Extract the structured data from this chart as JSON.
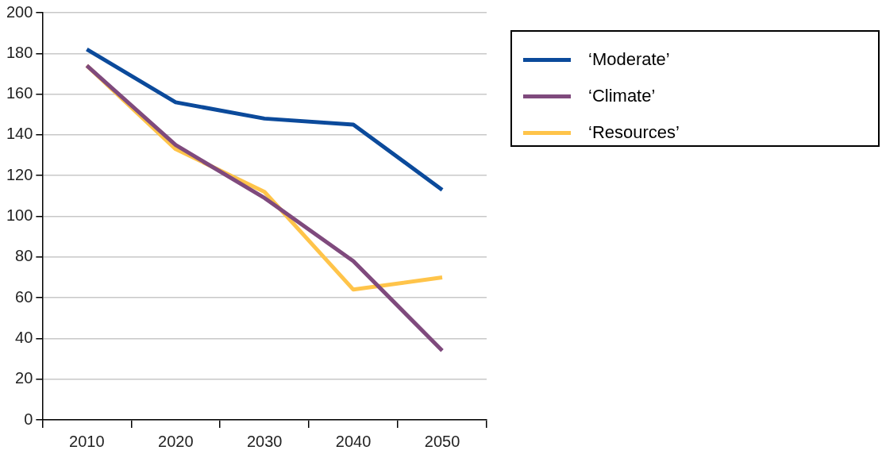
{
  "chart_data": {
    "type": "line",
    "categories": [
      "2010",
      "2020",
      "2030",
      "2040",
      "2050"
    ],
    "series": [
      {
        "name": "‘Moderate’",
        "color": "#0b4a9b",
        "values": [
          182,
          156,
          148,
          145,
          113
        ]
      },
      {
        "name": "‘Climate’",
        "color": "#7f4a7d",
        "values": [
          174,
          135,
          109,
          78,
          34
        ]
      },
      {
        "name": "‘Resources’",
        "color": "#ffc44a",
        "values": [
          174,
          133,
          112,
          64,
          70
        ]
      }
    ],
    "ylim": [
      0,
      200
    ],
    "yticks": [
      0,
      20,
      40,
      60,
      80,
      100,
      120,
      140,
      160,
      180,
      200
    ],
    "grid": "y",
    "legend": "top right",
    "marker": "none",
    "line_style": "solid"
  }
}
